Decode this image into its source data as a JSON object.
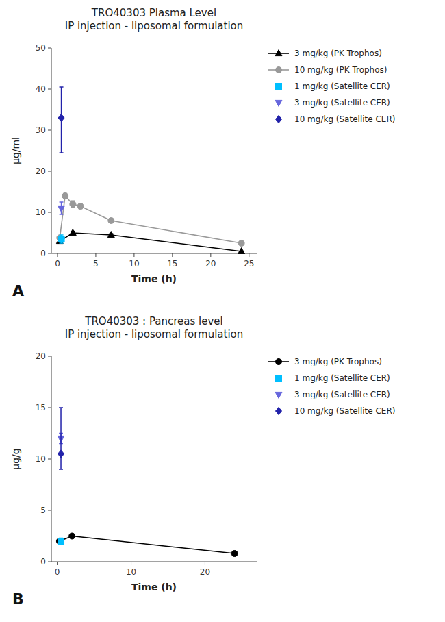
{
  "chart_data": [
    {
      "type": "line",
      "title": "TRO40303 Plasma Level\nIP injection - liposomal formulation",
      "x_label": "Time (h)",
      "y_label": "µg/ml",
      "annotations": [
        "A"
      ],
      "xlim": [
        -0.8,
        26
      ],
      "xticks": [
        0,
        5,
        10,
        15,
        20,
        25
      ],
      "ylim": [
        0,
        50
      ],
      "yticks": [
        0,
        10,
        20,
        30,
        40,
        50
      ],
      "grid": false,
      "series": [
        {
          "name": "3 mg/kg (PK Trophos)",
          "color": "#000000",
          "marker": "triangle-up",
          "line_style": "solid",
          "x": [
            0.3,
            2,
            7,
            24
          ],
          "values": [
            3.0,
            5.0,
            4.5,
            0.5
          ],
          "yerr": [
            0.5,
            0.4,
            0.3,
            0.1
          ]
        },
        {
          "name": "10 mg/kg (PK Trophos)",
          "color": "#999999",
          "marker": "circle",
          "line_style": "solid",
          "x": [
            0.3,
            1,
            2,
            3,
            7,
            24
          ],
          "values": [
            3.8,
            14.0,
            12.0,
            11.5,
            8.0,
            2.5
          ],
          "yerr": [
            0.3,
            0.6,
            0.8,
            0.6,
            0.5,
            0.3
          ]
        },
        {
          "name": "1 mg/kg (Satellite CER)",
          "color": "#00bfff",
          "marker": "square",
          "line_style": "none",
          "x": [
            0.5
          ],
          "values": [
            3.5
          ],
          "yerr": [
            1.0
          ]
        },
        {
          "name": "3 mg/kg (Satellite CER)",
          "color": "#6666dd",
          "marker": "triangle-down",
          "line_style": "none",
          "x": [
            0.5
          ],
          "values": [
            11.0
          ],
          "yerr": [
            1.5
          ]
        },
        {
          "name": "10 mg/kg (Satellite CER)",
          "color": "#2222aa",
          "marker": "diamond",
          "line_style": "none",
          "x": [
            0.5
          ],
          "values": [
            33.0
          ],
          "yerr_lo": [
            8.5
          ],
          "yerr_hi": [
            7.5
          ]
        }
      ]
    },
    {
      "type": "line",
      "title": "TRO40303 : Pancreas level\nIP injection - liposomal formulation",
      "x_label": "Time (h)",
      "y_label": "µg/g",
      "annotations": [
        "B"
      ],
      "xlim": [
        -0.8,
        27
      ],
      "xticks": [
        0,
        10,
        20
      ],
      "ylim": [
        0,
        20
      ],
      "yticks": [
        0,
        5,
        10,
        15,
        20
      ],
      "grid": false,
      "series": [
        {
          "name": "3 mg/kg (PK Trophos)",
          "color": "#000000",
          "marker": "circle",
          "line_style": "solid",
          "x": [
            0.3,
            2,
            24
          ],
          "values": [
            2.0,
            2.5,
            0.8
          ],
          "yerr": [
            0.2,
            0.2,
            0.1
          ]
        },
        {
          "name": "1 mg/kg (Satellite CER)",
          "color": "#00bfff",
          "marker": "square",
          "line_style": "none",
          "x": [
            0.5
          ],
          "values": [
            2.0
          ],
          "yerr": [
            0.3
          ]
        },
        {
          "name": "3 mg/kg (Satellite CER)",
          "color": "#6666dd",
          "marker": "triangle-down",
          "line_style": "none",
          "x": [
            0.5
          ],
          "values": [
            12.0
          ],
          "yerr": [
            0.5
          ]
        },
        {
          "name": "10 mg/kg (Satellite CER)",
          "color": "#2222aa",
          "marker": "diamond",
          "line_style": "none",
          "x": [
            0.5
          ],
          "values": [
            10.5
          ],
          "yerr_lo": [
            1.5
          ],
          "yerr_hi": [
            4.5
          ]
        }
      ]
    }
  ]
}
